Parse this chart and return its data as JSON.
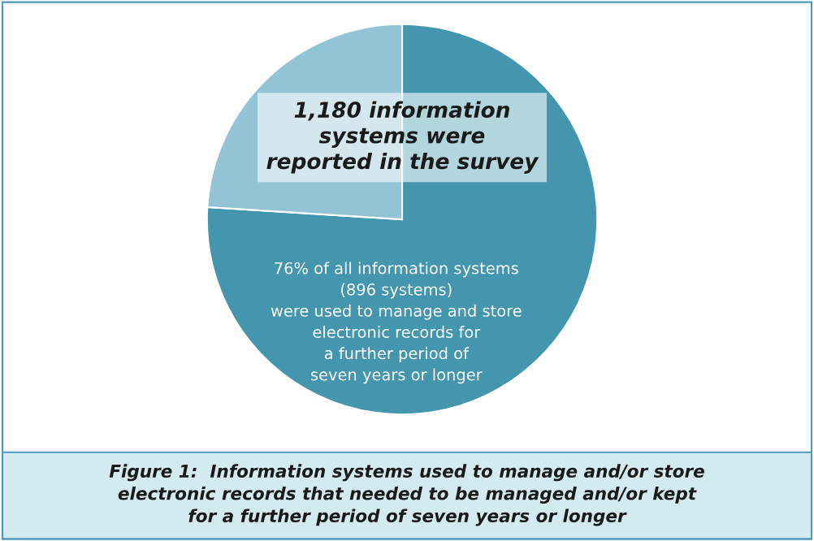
{
  "chart_data": {
    "type": "pie",
    "title": "Figure 1:  Information systems used to manage and/or store\nelectronic records that needed to be managed and/or kept\nfor a further period of seven years or longer",
    "categories": [
      null,
      null
    ],
    "values": [
      76,
      24
    ],
    "colors": [
      "#4396ad",
      "#93c4d5"
    ],
    "annotations": [
      "1,180 information\nsystems were\nreported in the survey",
      "76% of all information systems\n(896 systems)\nwere used to manage and store\nelectronic records for\na further period of\nseven years or longer"
    ]
  }
}
